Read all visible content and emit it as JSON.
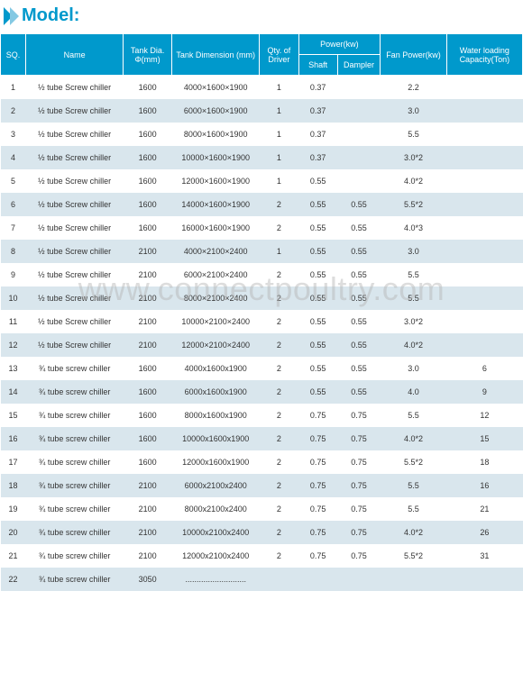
{
  "title": "Model:",
  "watermark": "www.connectpoultry.com",
  "columns": {
    "sq": "SQ.",
    "name": "Name",
    "tankDia": "Tank Dia. Φ(mm)",
    "tankDim": "Tank  Dimension (mm)",
    "qty": "Qty. of Driver",
    "power": "Power(kw)",
    "shaft": "Shaft",
    "dampler": "Dampler",
    "fan": "Fan Power(kw)",
    "capacity": "Water loading Capacity(Ton)"
  },
  "rows": [
    {
      "sq": "1",
      "name": "½ tube Screw chiller",
      "tdia": "1600",
      "tdim": "4000×1600×1900",
      "qty": "1",
      "shaft": "0.37",
      "damp": "",
      "fan": "2.2",
      "cap": ""
    },
    {
      "sq": "2",
      "name": "½ tube Screw chiller",
      "tdia": "1600",
      "tdim": "6000×1600×1900",
      "qty": "1",
      "shaft": "0.37",
      "damp": "",
      "fan": "3.0",
      "cap": ""
    },
    {
      "sq": "3",
      "name": "½ tube Screw chiller",
      "tdia": "1600",
      "tdim": "8000×1600×1900",
      "qty": "1",
      "shaft": "0.37",
      "damp": "",
      "fan": "5.5",
      "cap": ""
    },
    {
      "sq": "4",
      "name": "½ tube Screw chiller",
      "tdia": "1600",
      "tdim": "10000×1600×1900",
      "qty": "1",
      "shaft": "0.37",
      "damp": "",
      "fan": "3.0*2",
      "cap": ""
    },
    {
      "sq": "5",
      "name": "½ tube Screw chiller",
      "tdia": "1600",
      "tdim": "12000×1600×1900",
      "qty": "1",
      "shaft": "0.55",
      "damp": "",
      "fan": "4.0*2",
      "cap": ""
    },
    {
      "sq": "6",
      "name": "½ tube Screw chiller",
      "tdia": "1600",
      "tdim": "14000×1600×1900",
      "qty": "2",
      "shaft": "0.55",
      "damp": "0.55",
      "fan": "5.5*2",
      "cap": ""
    },
    {
      "sq": "7",
      "name": "½ tube Screw chiller",
      "tdia": "1600",
      "tdim": "16000×1600×1900",
      "qty": "2",
      "shaft": "0.55",
      "damp": "0.55",
      "fan": "4.0*3",
      "cap": ""
    },
    {
      "sq": "8",
      "name": "½ tube Screw chiller",
      "tdia": "2100",
      "tdim": "4000×2100×2400",
      "qty": "1",
      "shaft": "0.55",
      "damp": "0.55",
      "fan": "3.0",
      "cap": ""
    },
    {
      "sq": "9",
      "name": "½ tube Screw chiller",
      "tdia": "2100",
      "tdim": "6000×2100×2400",
      "qty": "2",
      "shaft": "0.55",
      "damp": "0.55",
      "fan": "5.5",
      "cap": ""
    },
    {
      "sq": "10",
      "name": "½ tube Screw chiller",
      "tdia": "2100",
      "tdim": "8000×2100×2400",
      "qty": "2",
      "shaft": "0.55",
      "damp": "0.55",
      "fan": "5.5",
      "cap": ""
    },
    {
      "sq": "11",
      "name": "½ tube Screw chiller",
      "tdia": "2100",
      "tdim": "10000×2100×2400",
      "qty": "2",
      "shaft": "0.55",
      "damp": "0.55",
      "fan": "3.0*2",
      "cap": ""
    },
    {
      "sq": "12",
      "name": "½ tube Screw chiller",
      "tdia": "2100",
      "tdim": "12000×2100×2400",
      "qty": "2",
      "shaft": "0.55",
      "damp": "0.55",
      "fan": "4.0*2",
      "cap": ""
    },
    {
      "sq": "13",
      "name": "¾ tube screw chiller",
      "tdia": "1600",
      "tdim": "4000x1600x1900",
      "qty": "2",
      "shaft": "0.55",
      "damp": "0.55",
      "fan": "3.0",
      "cap": "6"
    },
    {
      "sq": "14",
      "name": "¾ tube screw chiller",
      "tdia": "1600",
      "tdim": "6000x1600x1900",
      "qty": "2",
      "shaft": "0.55",
      "damp": "0.55",
      "fan": "4.0",
      "cap": "9"
    },
    {
      "sq": "15",
      "name": "¾ tube screw chiller",
      "tdia": "1600",
      "tdim": "8000x1600x1900",
      "qty": "2",
      "shaft": "0.75",
      "damp": "0.75",
      "fan": "5.5",
      "cap": "12"
    },
    {
      "sq": "16",
      "name": "¾ tube screw chiller",
      "tdia": "1600",
      "tdim": "10000x1600x1900",
      "qty": "2",
      "shaft": "0.75",
      "damp": "0.75",
      "fan": "4.0*2",
      "cap": "15"
    },
    {
      "sq": "17",
      "name": "¾ tube screw chiller",
      "tdia": "1600",
      "tdim": "12000x1600x1900",
      "qty": "2",
      "shaft": "0.75",
      "damp": "0.75",
      "fan": "5.5*2",
      "cap": "18"
    },
    {
      "sq": "18",
      "name": "¾ tube screw chiller",
      "tdia": "2100",
      "tdim": "6000x2100x2400",
      "qty": "2",
      "shaft": "0.75",
      "damp": "0.75",
      "fan": "5.5",
      "cap": "16"
    },
    {
      "sq": "19",
      "name": "¾ tube screw chiller",
      "tdia": "2100",
      "tdim": "8000x2100x2400",
      "qty": "2",
      "shaft": "0.75",
      "damp": "0.75",
      "fan": "5.5",
      "cap": "21"
    },
    {
      "sq": "20",
      "name": "¾ tube screw chiller",
      "tdia": "2100",
      "tdim": "10000x2100x2400",
      "qty": "2",
      "shaft": "0.75",
      "damp": "0.75",
      "fan": "4.0*2",
      "cap": "26"
    },
    {
      "sq": "21",
      "name": "¾ tube screw chiller",
      "tdia": "2100",
      "tdim": "12000x2100x2400",
      "qty": "2",
      "shaft": "0.75",
      "damp": "0.75",
      "fan": "5.5*2",
      "cap": "31"
    },
    {
      "sq": "22",
      "name": "¾ tube screw chiller",
      "tdia": "3050",
      "tdim": "...........................",
      "qty": "",
      "shaft": "",
      "damp": "",
      "fan": "",
      "cap": ""
    }
  ]
}
